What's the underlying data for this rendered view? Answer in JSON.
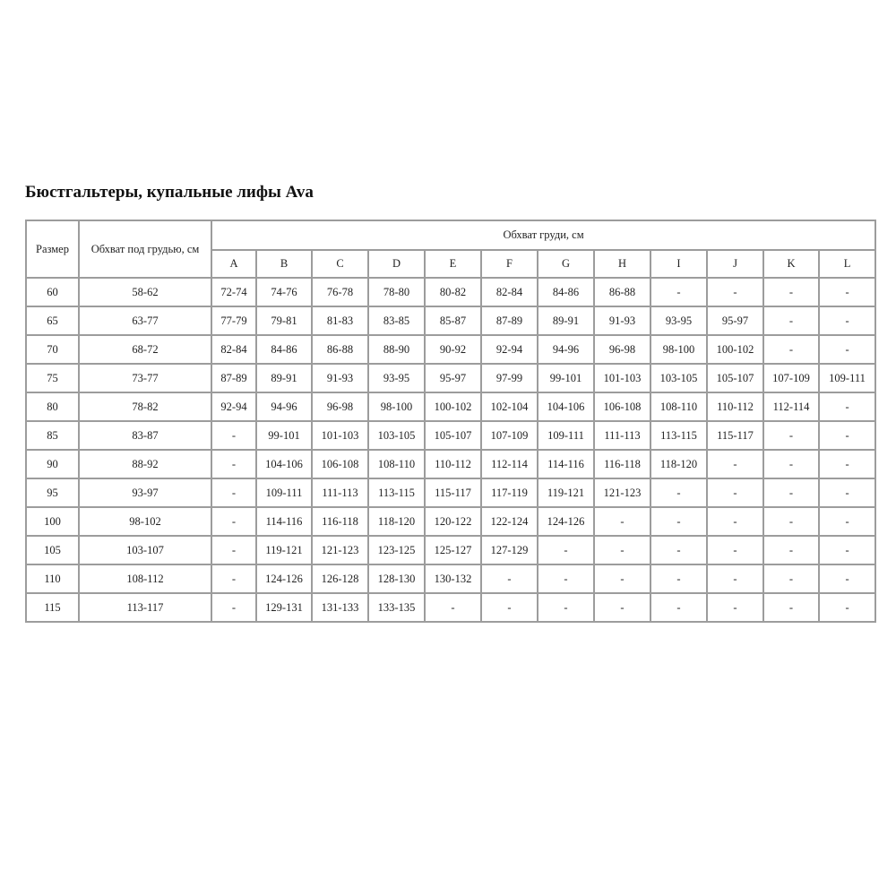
{
  "title": "Бюстгальтеры, купальные лифы Ava",
  "table": {
    "size_header": "Размер",
    "underbust_header": "Обхват под грудью, см",
    "bust_header": "Обхват груди, см",
    "cups": [
      "A",
      "B",
      "C",
      "D",
      "E",
      "F",
      "G",
      "H",
      "I",
      "J",
      "K",
      "L"
    ],
    "rows": [
      {
        "size": "60",
        "underbust": "58-62",
        "values": [
          "72-74",
          "74-76",
          "76-78",
          "78-80",
          "80-82",
          "82-84",
          "84-86",
          "86-88",
          "-",
          "-",
          "-",
          "-"
        ]
      },
      {
        "size": "65",
        "underbust": "63-77",
        "values": [
          "77-79",
          "79-81",
          "81-83",
          "83-85",
          "85-87",
          "87-89",
          "89-91",
          "91-93",
          "93-95",
          "95-97",
          "-",
          "-"
        ]
      },
      {
        "size": "70",
        "underbust": "68-72",
        "values": [
          "82-84",
          "84-86",
          "86-88",
          "88-90",
          "90-92",
          "92-94",
          "94-96",
          "96-98",
          "98-100",
          "100-102",
          "-",
          "-"
        ]
      },
      {
        "size": "75",
        "underbust": "73-77",
        "values": [
          "87-89",
          "89-91",
          "91-93",
          "93-95",
          "95-97",
          "97-99",
          "99-101",
          "101-103",
          "103-105",
          "105-107",
          "107-109",
          "109-111"
        ]
      },
      {
        "size": "80",
        "underbust": "78-82",
        "values": [
          "92-94",
          "94-96",
          "96-98",
          "98-100",
          "100-102",
          "102-104",
          "104-106",
          "106-108",
          "108-110",
          "110-112",
          "112-114",
          "-"
        ]
      },
      {
        "size": "85",
        "underbust": "83-87",
        "values": [
          "-",
          "99-101",
          "101-103",
          "103-105",
          "105-107",
          "107-109",
          "109-111",
          "111-113",
          "113-115",
          "115-117",
          "-",
          "-"
        ]
      },
      {
        "size": "90",
        "underbust": "88-92",
        "values": [
          "-",
          "104-106",
          "106-108",
          "108-110",
          "110-112",
          "112-114",
          "114-116",
          "116-118",
          "118-120",
          "-",
          "-",
          "-"
        ]
      },
      {
        "size": "95",
        "underbust": "93-97",
        "values": [
          "-",
          "109-111",
          "111-113",
          "113-115",
          "115-117",
          "117-119",
          "119-121",
          "121-123",
          "-",
          "-",
          "-",
          "-"
        ]
      },
      {
        "size": "100",
        "underbust": "98-102",
        "values": [
          "-",
          "114-116",
          "116-118",
          "118-120",
          "120-122",
          "122-124",
          "124-126",
          "-",
          "-",
          "-",
          "-",
          "-"
        ]
      },
      {
        "size": "105",
        "underbust": "103-107",
        "values": [
          "-",
          "119-121",
          "121-123",
          "123-125",
          "125-127",
          "127-129",
          "-",
          "-",
          "-",
          "-",
          "-",
          "-"
        ]
      },
      {
        "size": "110",
        "underbust": "108-112",
        "values": [
          "-",
          "124-126",
          "126-128",
          "128-130",
          "130-132",
          "-",
          "-",
          "-",
          "-",
          "-",
          "-",
          "-"
        ]
      },
      {
        "size": "115",
        "underbust": "113-117",
        "values": [
          "-",
          "129-131",
          "131-133",
          "133-135",
          "-",
          "-",
          "-",
          "-",
          "-",
          "-",
          "-",
          "-"
        ]
      }
    ]
  }
}
